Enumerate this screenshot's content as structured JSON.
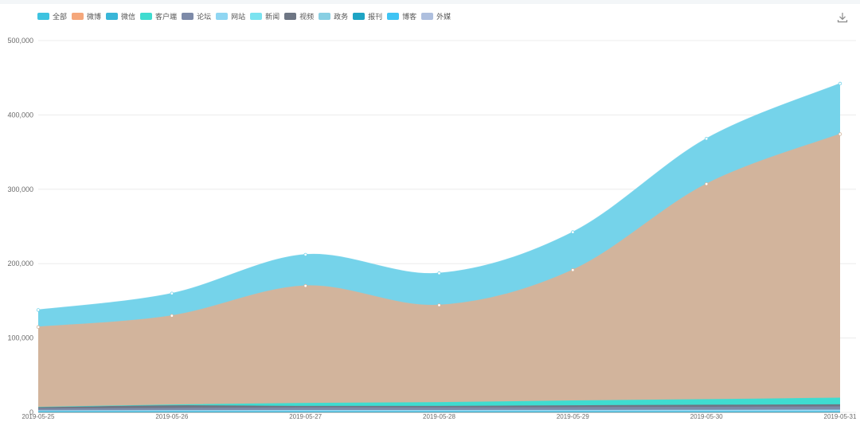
{
  "colors": {
    "background": "#ffffff",
    "grid": "#ececec",
    "axis_text": "#6b6b6b"
  },
  "toolbar": {
    "download_icon": "download-icon"
  },
  "chart_data": {
    "type": "area",
    "stacked": true,
    "smooth": true,
    "title": "",
    "xlabel": "",
    "ylabel": "",
    "ylim": [
      0,
      500000
    ],
    "yticks": [
      "0",
      "100,000",
      "200,000",
      "300,000",
      "400,000",
      "500,000"
    ],
    "ytick_values": [
      0,
      100000,
      200000,
      300000,
      400000,
      500000
    ],
    "grid": true,
    "legend_position": "top-left",
    "x": [
      "2019-05-25",
      "2019-05-26",
      "2019-05-27",
      "2019-05-28",
      "2019-05-29",
      "2019-05-30",
      "2019-05-31"
    ],
    "legend": [
      {
        "name": "全部",
        "color": "#3ec3e0"
      },
      {
        "name": "微博",
        "color": "#f5a77b"
      },
      {
        "name": "微信",
        "color": "#39b6d8"
      },
      {
        "name": "客户端",
        "color": "#3fdcd0"
      },
      {
        "name": "论坛",
        "color": "#7d8aa8"
      },
      {
        "name": "网站",
        "color": "#8fd6f2"
      },
      {
        "name": "新闻",
        "color": "#7ae3f0"
      },
      {
        "name": "视频",
        "color": "#6e7684"
      },
      {
        "name": "政务",
        "color": "#88cfe3"
      },
      {
        "name": "报刊",
        "color": "#1ea4c4"
      },
      {
        "name": "博客",
        "color": "#3fc4f4"
      },
      {
        "name": "外媒",
        "color": "#aebfde"
      }
    ],
    "series": [
      {
        "name": "报刊",
        "color": "#1ea4c4",
        "values": [
          300,
          300,
          300,
          300,
          300,
          300,
          300
        ]
      },
      {
        "name": "政务",
        "color": "#88cfe3",
        "values": [
          400,
          400,
          400,
          400,
          400,
          400,
          400
        ]
      },
      {
        "name": "网站",
        "color": "#8fd6f2",
        "values": [
          1500,
          1700,
          1900,
          1900,
          2000,
          2200,
          2400
        ]
      },
      {
        "name": "论坛",
        "color": "#7d8aa8",
        "values": [
          2500,
          3000,
          3500,
          3500,
          3700,
          4000,
          4300
        ]
      },
      {
        "name": "视频",
        "color": "#6e7684",
        "values": [
          1500,
          3500,
          2000,
          2000,
          2500,
          2700,
          2800
        ]
      },
      {
        "name": "客户端",
        "color": "#3fdcd0",
        "values": [
          500,
          1000,
          4000,
          5000,
          6500,
          7500,
          9000
        ]
      },
      {
        "name": "微博",
        "color": "#d2b49c",
        "values": [
          108000,
          120000,
          158000,
          131000,
          176000,
          290000,
          355000
        ]
      },
      {
        "name": "微信",
        "color": "#75d3ea",
        "values": [
          23000,
          30000,
          42000,
          43000,
          51000,
          61000,
          68000
        ]
      }
    ]
  }
}
